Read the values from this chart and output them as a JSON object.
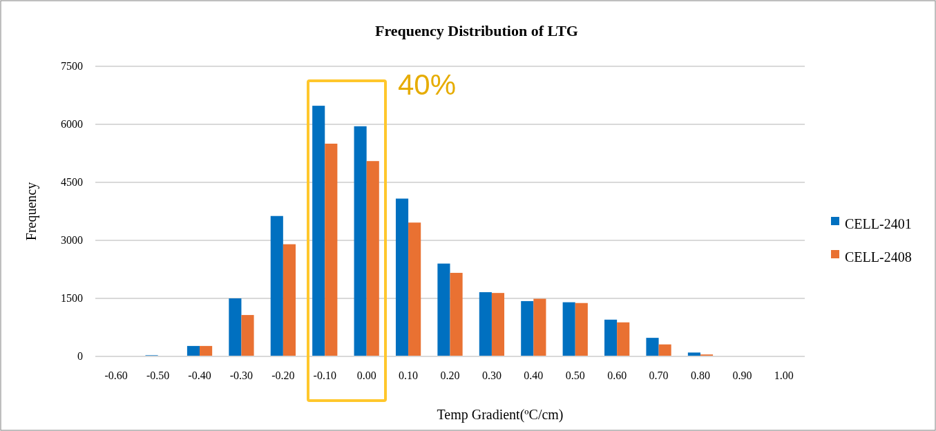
{
  "chart_data": {
    "type": "bar",
    "title": "Frequency Distribution of LTG",
    "xlabel": "Temp Gradient(ºC/cm)",
    "ylabel": "Frequency",
    "categories": [
      "-0.60",
      "-0.50",
      "-0.40",
      "-0.30",
      "-0.20",
      "-0.10",
      "0.00",
      "0.10",
      "0.20",
      "0.30",
      "0.40",
      "0.50",
      "0.60",
      "0.70",
      "0.80",
      "0.90",
      "1.00"
    ],
    "series": [
      {
        "name": "CELL-2401",
        "color": "#0070c0",
        "values": [
          0,
          30,
          270,
          1500,
          3630,
          6480,
          5950,
          4080,
          2400,
          1660,
          1430,
          1400,
          950,
          480,
          100,
          0,
          0
        ]
      },
      {
        "name": "CELL-2408",
        "color": "#e97132",
        "values": [
          0,
          0,
          270,
          1070,
          2900,
          5500,
          5050,
          3460,
          2160,
          1640,
          1490,
          1380,
          880,
          310,
          50,
          0,
          0
        ]
      }
    ],
    "ylim": [
      0,
      7500
    ],
    "yticks": [
      0,
      1500,
      3000,
      4500,
      6000,
      7500
    ],
    "grid": "y",
    "legend": "right",
    "annotations": [
      "40%"
    ]
  }
}
